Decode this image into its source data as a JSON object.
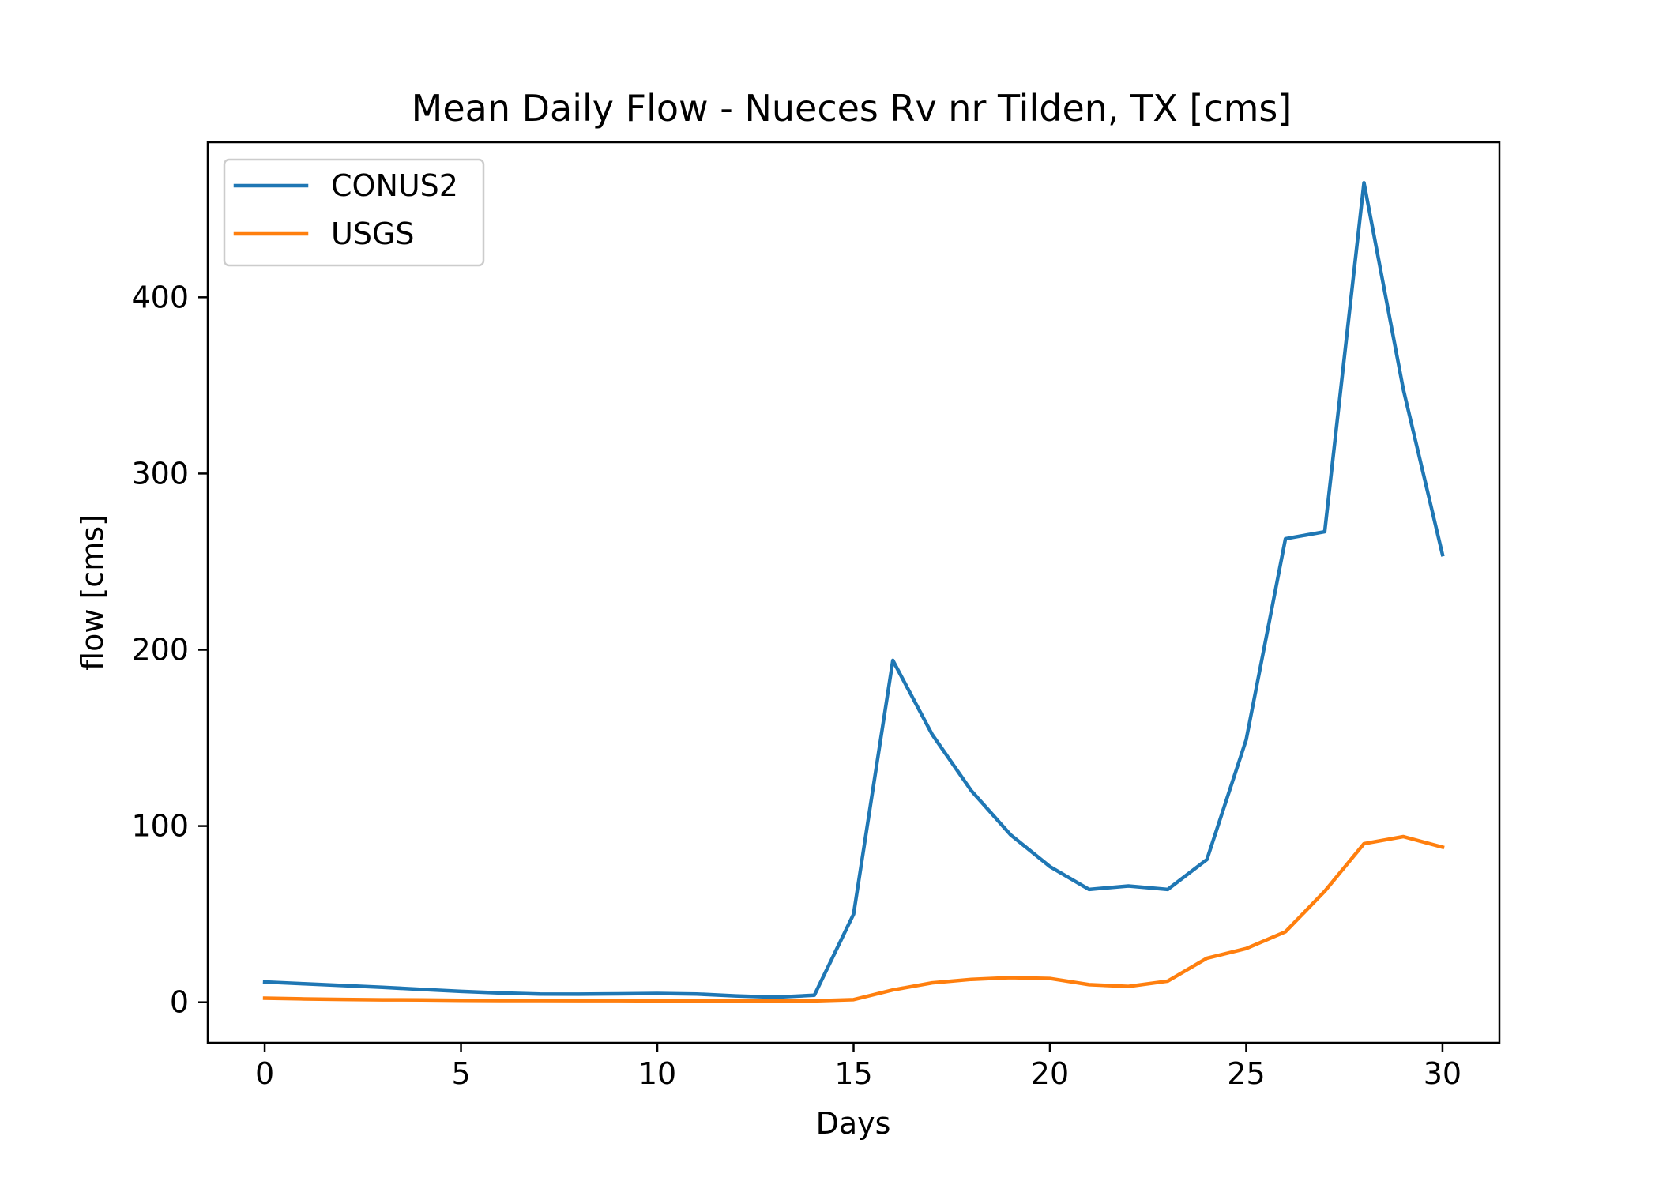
{
  "chart_data": {
    "type": "line",
    "title": "Mean Daily Flow - Nueces Rv nr Tilden, TX [cms]",
    "xlabel": "Days",
    "ylabel": "flow [cms]",
    "xlim": [
      -1.45,
      31.45
    ],
    "ylim": [
      -23,
      488
    ],
    "xticks": [
      0,
      5,
      10,
      15,
      20,
      25,
      30
    ],
    "yticks": [
      0,
      100,
      200,
      300,
      400
    ],
    "grid": false,
    "legend_position": "top-left",
    "x": [
      0,
      1,
      2,
      3,
      4,
      5,
      6,
      7,
      8,
      9,
      10,
      11,
      12,
      13,
      14,
      15,
      16,
      17,
      18,
      19,
      20,
      21,
      22,
      23,
      24,
      25,
      26,
      27,
      28,
      29,
      30
    ],
    "series": [
      {
        "name": "CONUS2",
        "color": "#1f77b4",
        "values": [
          11.5,
          10.5,
          9.5,
          8.5,
          7.3,
          6.2,
          5.3,
          4.7,
          4.6,
          4.8,
          5.0,
          4.7,
          3.6,
          2.9,
          4.0,
          50,
          194,
          152,
          120,
          95,
          77,
          64,
          66,
          64,
          81,
          149,
          263,
          267,
          465,
          348,
          254
        ]
      },
      {
        "name": "USGS",
        "color": "#ff7f0e",
        "values": [
          2.3,
          1.9,
          1.6,
          1.4,
          1.3,
          1.1,
          1.0,
          1.0,
          0.9,
          0.9,
          0.8,
          0.8,
          0.8,
          0.8,
          0.8,
          1.5,
          7,
          11,
          13,
          14,
          13.5,
          10,
          9,
          12,
          25,
          30.5,
          40,
          63,
          90,
          94,
          88
        ]
      }
    ]
  }
}
